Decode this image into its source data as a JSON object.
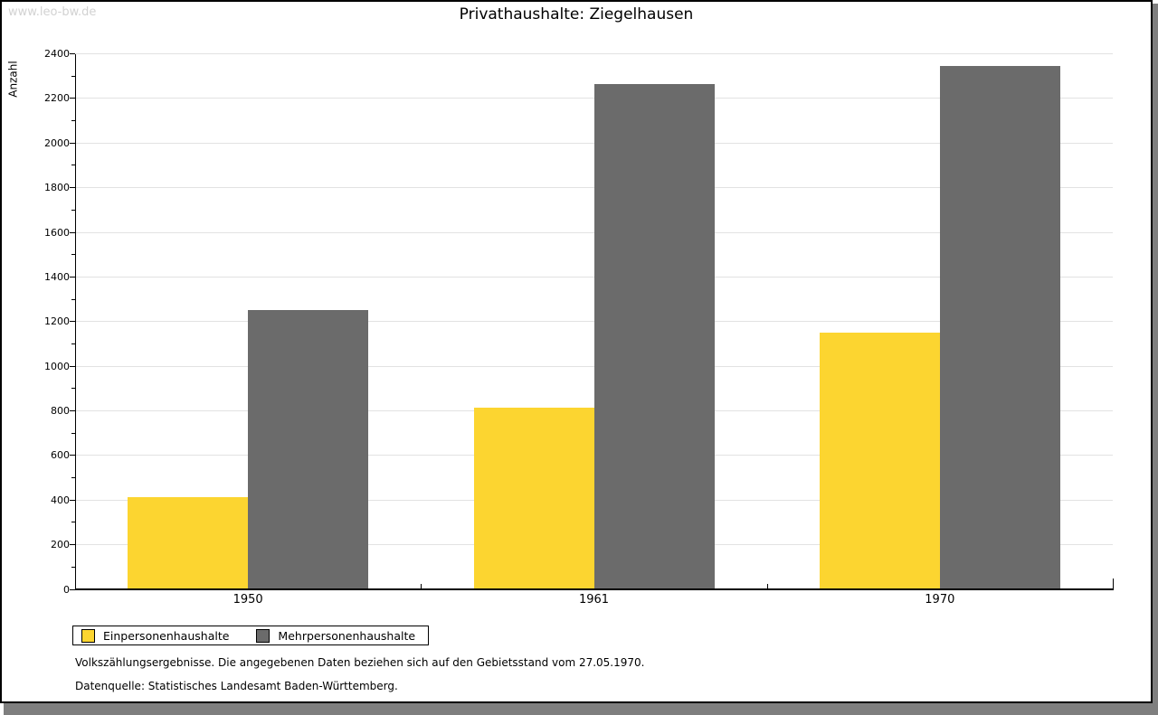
{
  "watermark": "www.leo-bw.de",
  "chart_data": {
    "type": "bar",
    "title": "Privathaushalte: Ziegelhausen",
    "xlabel": "",
    "ylabel": "Anzahl",
    "categories": [
      "1950",
      "1961",
      "1970"
    ],
    "series": [
      {
        "name": "Einpersonenhaushalte",
        "color": "#FCD530",
        "values": [
          415,
          813,
          1152
        ]
      },
      {
        "name": "Mehrpersonenhaushalte",
        "color": "#6B6B6B",
        "values": [
          1250,
          2265,
          2345
        ]
      }
    ],
    "ylim": [
      0,
      2400
    ],
    "ytick_step": 200,
    "yminor_step": 100,
    "grid": true,
    "gridline_color": "#e2e2e2",
    "legend_position": "bottom-left"
  },
  "footnotes": [
    "Volkszählungsergebnisse. Die angegebenen Daten beziehen sich auf den Gebietsstand vom 27.05.1970.",
    "Datenquelle: Statistisches Landesamt Baden-Württemberg."
  ]
}
